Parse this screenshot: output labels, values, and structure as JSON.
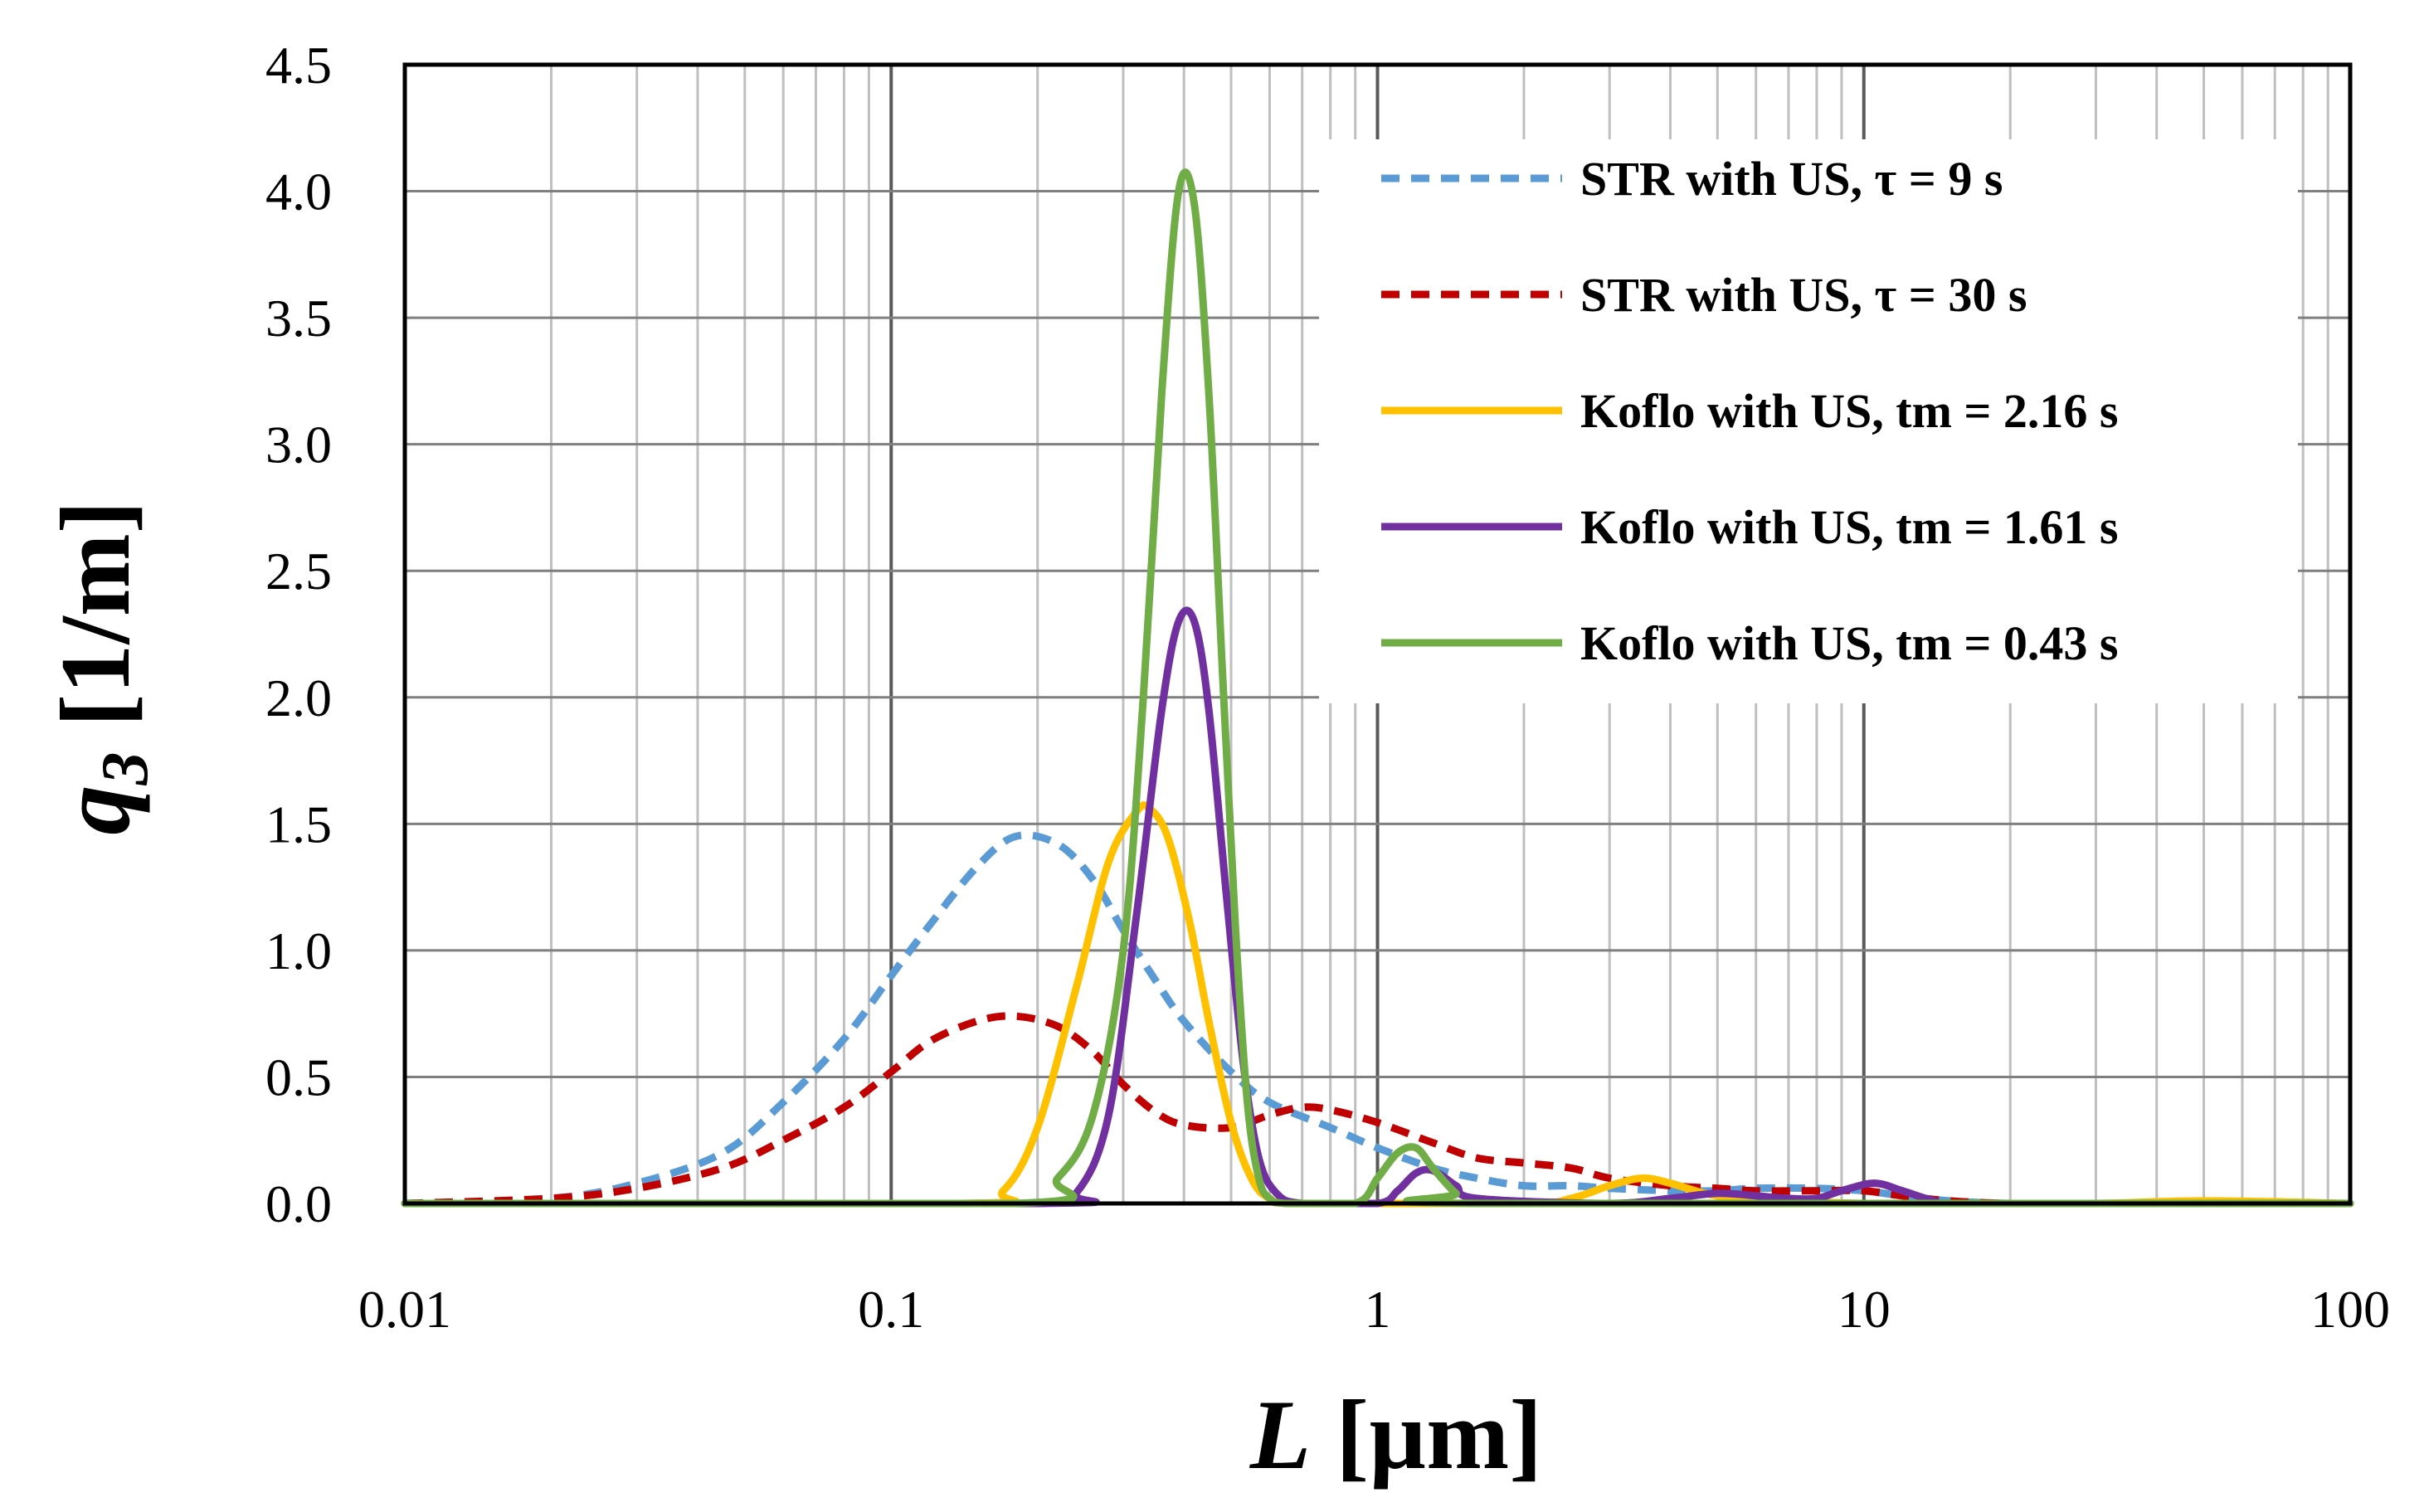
{
  "chart_data": {
    "type": "line",
    "title": "",
    "xlabel": "L [µm]",
    "xlabel_symbol": "L",
    "xlabel_unit": " [µm]",
    "ylabel": "q3 [1/m]",
    "ylabel_symbol": "q",
    "ylabel_subscript": "3",
    "ylabel_unit": " [1/m]",
    "xscale": "log",
    "xlim": [
      0.01,
      100
    ],
    "ylim": [
      0,
      4.5
    ],
    "x_tick_values": [
      0.01,
      0.1,
      1,
      10,
      100
    ],
    "x_tick_labels": [
      "0.01",
      "0.1",
      "1",
      "10",
      "100"
    ],
    "y_tick_values": [
      0,
      0.5,
      1,
      1.5,
      2,
      2.5,
      3,
      3.5,
      4,
      4.5
    ],
    "y_tick_labels": [
      "0.0",
      "0.5",
      "1.0",
      "1.5",
      "2.0",
      "2.5",
      "3.0",
      "3.5",
      "4.0",
      "4.5"
    ],
    "grid": true,
    "legend_position": "top-right",
    "series": [
      {
        "name": "STR with US, τ = 9 s",
        "color": "#5B9BD5",
        "dash": true,
        "x": [
          0.01,
          0.02,
          0.03,
          0.045,
          0.06,
          0.08,
          0.1,
          0.12,
          0.15,
          0.18,
          0.22,
          0.26,
          0.3,
          0.35,
          0.4,
          0.5,
          0.6,
          0.8,
          1.0,
          1.3,
          1.6,
          2.0,
          2.5,
          3.0,
          4.0,
          5.0,
          6.0,
          8.0,
          10.0,
          12.0,
          15.0,
          20.0,
          30.0,
          100.0
        ],
        "y": [
          0.0,
          0.02,
          0.08,
          0.2,
          0.4,
          0.65,
          0.9,
          1.1,
          1.33,
          1.45,
          1.42,
          1.28,
          1.08,
          0.88,
          0.72,
          0.52,
          0.4,
          0.3,
          0.22,
          0.14,
          0.1,
          0.07,
          0.07,
          0.06,
          0.05,
          0.05,
          0.06,
          0.06,
          0.05,
          0.03,
          0.01,
          0.0,
          0.0,
          0.0
        ]
      },
      {
        "name": "STR with US, τ = 30 s",
        "color": "#C00000",
        "dash": true,
        "x": [
          0.01,
          0.02,
          0.03,
          0.045,
          0.06,
          0.08,
          0.1,
          0.12,
          0.15,
          0.18,
          0.22,
          0.26,
          0.3,
          0.35,
          0.4,
          0.5,
          0.6,
          0.7,
          0.8,
          1.0,
          1.3,
          1.6,
          2.0,
          2.5,
          3.0,
          4.0,
          5.0,
          6.0,
          8.0,
          10.0,
          12.0,
          15.0,
          20.0,
          30.0,
          100.0
        ],
        "y": [
          0.0,
          0.02,
          0.06,
          0.14,
          0.25,
          0.38,
          0.52,
          0.64,
          0.72,
          0.74,
          0.7,
          0.6,
          0.47,
          0.36,
          0.31,
          0.3,
          0.35,
          0.38,
          0.37,
          0.32,
          0.24,
          0.18,
          0.16,
          0.14,
          0.1,
          0.07,
          0.06,
          0.05,
          0.05,
          0.05,
          0.03,
          0.01,
          0.0,
          0.0,
          0.0
        ]
      },
      {
        "name": "Koflo with US, tm = 2.16 s",
        "color": "#FFC000",
        "dash": false,
        "x": [
          0.01,
          0.14,
          0.17,
          0.2,
          0.24,
          0.28,
          0.32,
          0.34,
          0.37,
          0.41,
          0.45,
          0.5,
          0.55,
          0.6,
          0.7,
          2.0,
          2.5,
          3.0,
          3.5,
          4.0,
          4.7,
          5.5,
          7.0,
          10.0,
          15.0,
          30.0,
          50.0,
          100.0
        ],
        "y": [
          0.0,
          0.0,
          0.05,
          0.3,
          0.85,
          1.35,
          1.55,
          1.56,
          1.45,
          1.12,
          0.72,
          0.32,
          0.1,
          0.02,
          0.0,
          0.0,
          0.02,
          0.07,
          0.1,
          0.08,
          0.04,
          0.02,
          0.01,
          0.0,
          0.0,
          0.0,
          0.01,
          0.0
        ]
      },
      {
        "name": "Koflo with US, tm = 1.61 s",
        "color": "#7030A0",
        "dash": false,
        "x": [
          0.01,
          0.2,
          0.24,
          0.28,
          0.32,
          0.36,
          0.39,
          0.42,
          0.45,
          0.49,
          0.53,
          0.57,
          0.62,
          0.7,
          1.0,
          1.1,
          1.2,
          1.3,
          1.45,
          1.6,
          3.0,
          4.0,
          5.0,
          6.0,
          7.0,
          8.0,
          9.0,
          10.5,
          12.0,
          14.0,
          16.0,
          100.0
        ],
        "y": [
          0.0,
          0.0,
          0.04,
          0.35,
          1.15,
          1.95,
          2.3,
          2.3,
          1.95,
          1.2,
          0.55,
          0.18,
          0.04,
          0.0,
          0.0,
          0.05,
          0.12,
          0.13,
          0.07,
          0.02,
          0.0,
          0.02,
          0.04,
          0.03,
          0.02,
          0.02,
          0.05,
          0.08,
          0.05,
          0.01,
          0.0,
          0.0
        ]
      },
      {
        "name": "Koflo with US, tm = 0.43 s",
        "color": "#70AD47",
        "dash": false,
        "x": [
          0.01,
          0.18,
          0.22,
          0.26,
          0.3,
          0.33,
          0.36,
          0.39,
          0.42,
          0.45,
          0.48,
          0.51,
          0.54,
          0.57,
          0.6,
          0.65,
          0.9,
          1.0,
          1.1,
          1.2,
          1.3,
          1.45,
          1.6,
          100.0
        ],
        "y": [
          0.0,
          0.0,
          0.1,
          0.35,
          1.0,
          2.0,
          3.2,
          4.0,
          3.95,
          3.2,
          2.1,
          1.1,
          0.4,
          0.1,
          0.02,
          0.0,
          0.0,
          0.1,
          0.2,
          0.22,
          0.14,
          0.04,
          0.0,
          0.0
        ]
      }
    ]
  }
}
